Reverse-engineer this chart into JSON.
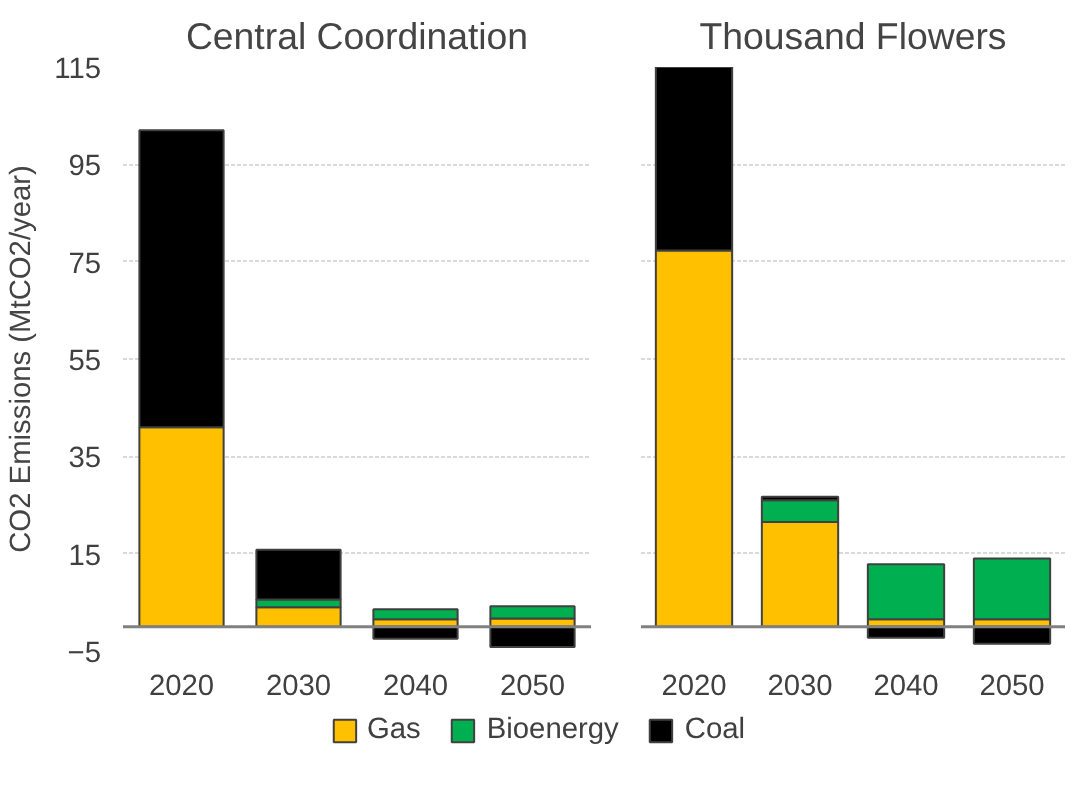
{
  "chart_data": [
    {
      "type": "bar",
      "title": "Central Coordination",
      "ylabel": "CO2 Emissions (MtCO2/year)",
      "categories": [
        "2020",
        "2030",
        "2040",
        "2050"
      ],
      "stacked": true,
      "ylim": [
        -5,
        115
      ],
      "yticks": [
        -5,
        15,
        35,
        55,
        75,
        95,
        115
      ],
      "grid": "y",
      "legend": "bottom",
      "series": [
        {
          "name": "Gas",
          "color": "#ffc000",
          "values": [
            41,
            4,
            1.5,
            1.7
          ]
        },
        {
          "name": "Bioenergy",
          "color": "#00b050",
          "values": [
            0,
            1.6,
            2.1,
            2.5
          ]
        },
        {
          "name": "Coal",
          "color": "#000000",
          "values": [
            61,
            10.2,
            -2.5,
            -4.2
          ]
        }
      ]
    },
    {
      "type": "bar",
      "title": "Thousand Flowers",
      "categories": [
        "2020",
        "2030",
        "2040",
        "2050"
      ],
      "stacked": true,
      "ylim": [
        -5,
        115
      ],
      "yticks": [
        -5,
        15,
        35,
        55,
        75,
        95,
        115
      ],
      "grid": "y",
      "tick_labels": "x",
      "series": [
        {
          "color": "#ffc000",
          "values": [
            77.3,
            21.5,
            1.5,
            1.5
          ]
        },
        {
          "color": "#00b050",
          "values": [
            0,
            4.5,
            11.3,
            12.5
          ]
        },
        {
          "color": "#000000",
          "values": [
            38,
            0.7,
            -2.3,
            -3.5
          ]
        }
      ]
    }
  ]
}
